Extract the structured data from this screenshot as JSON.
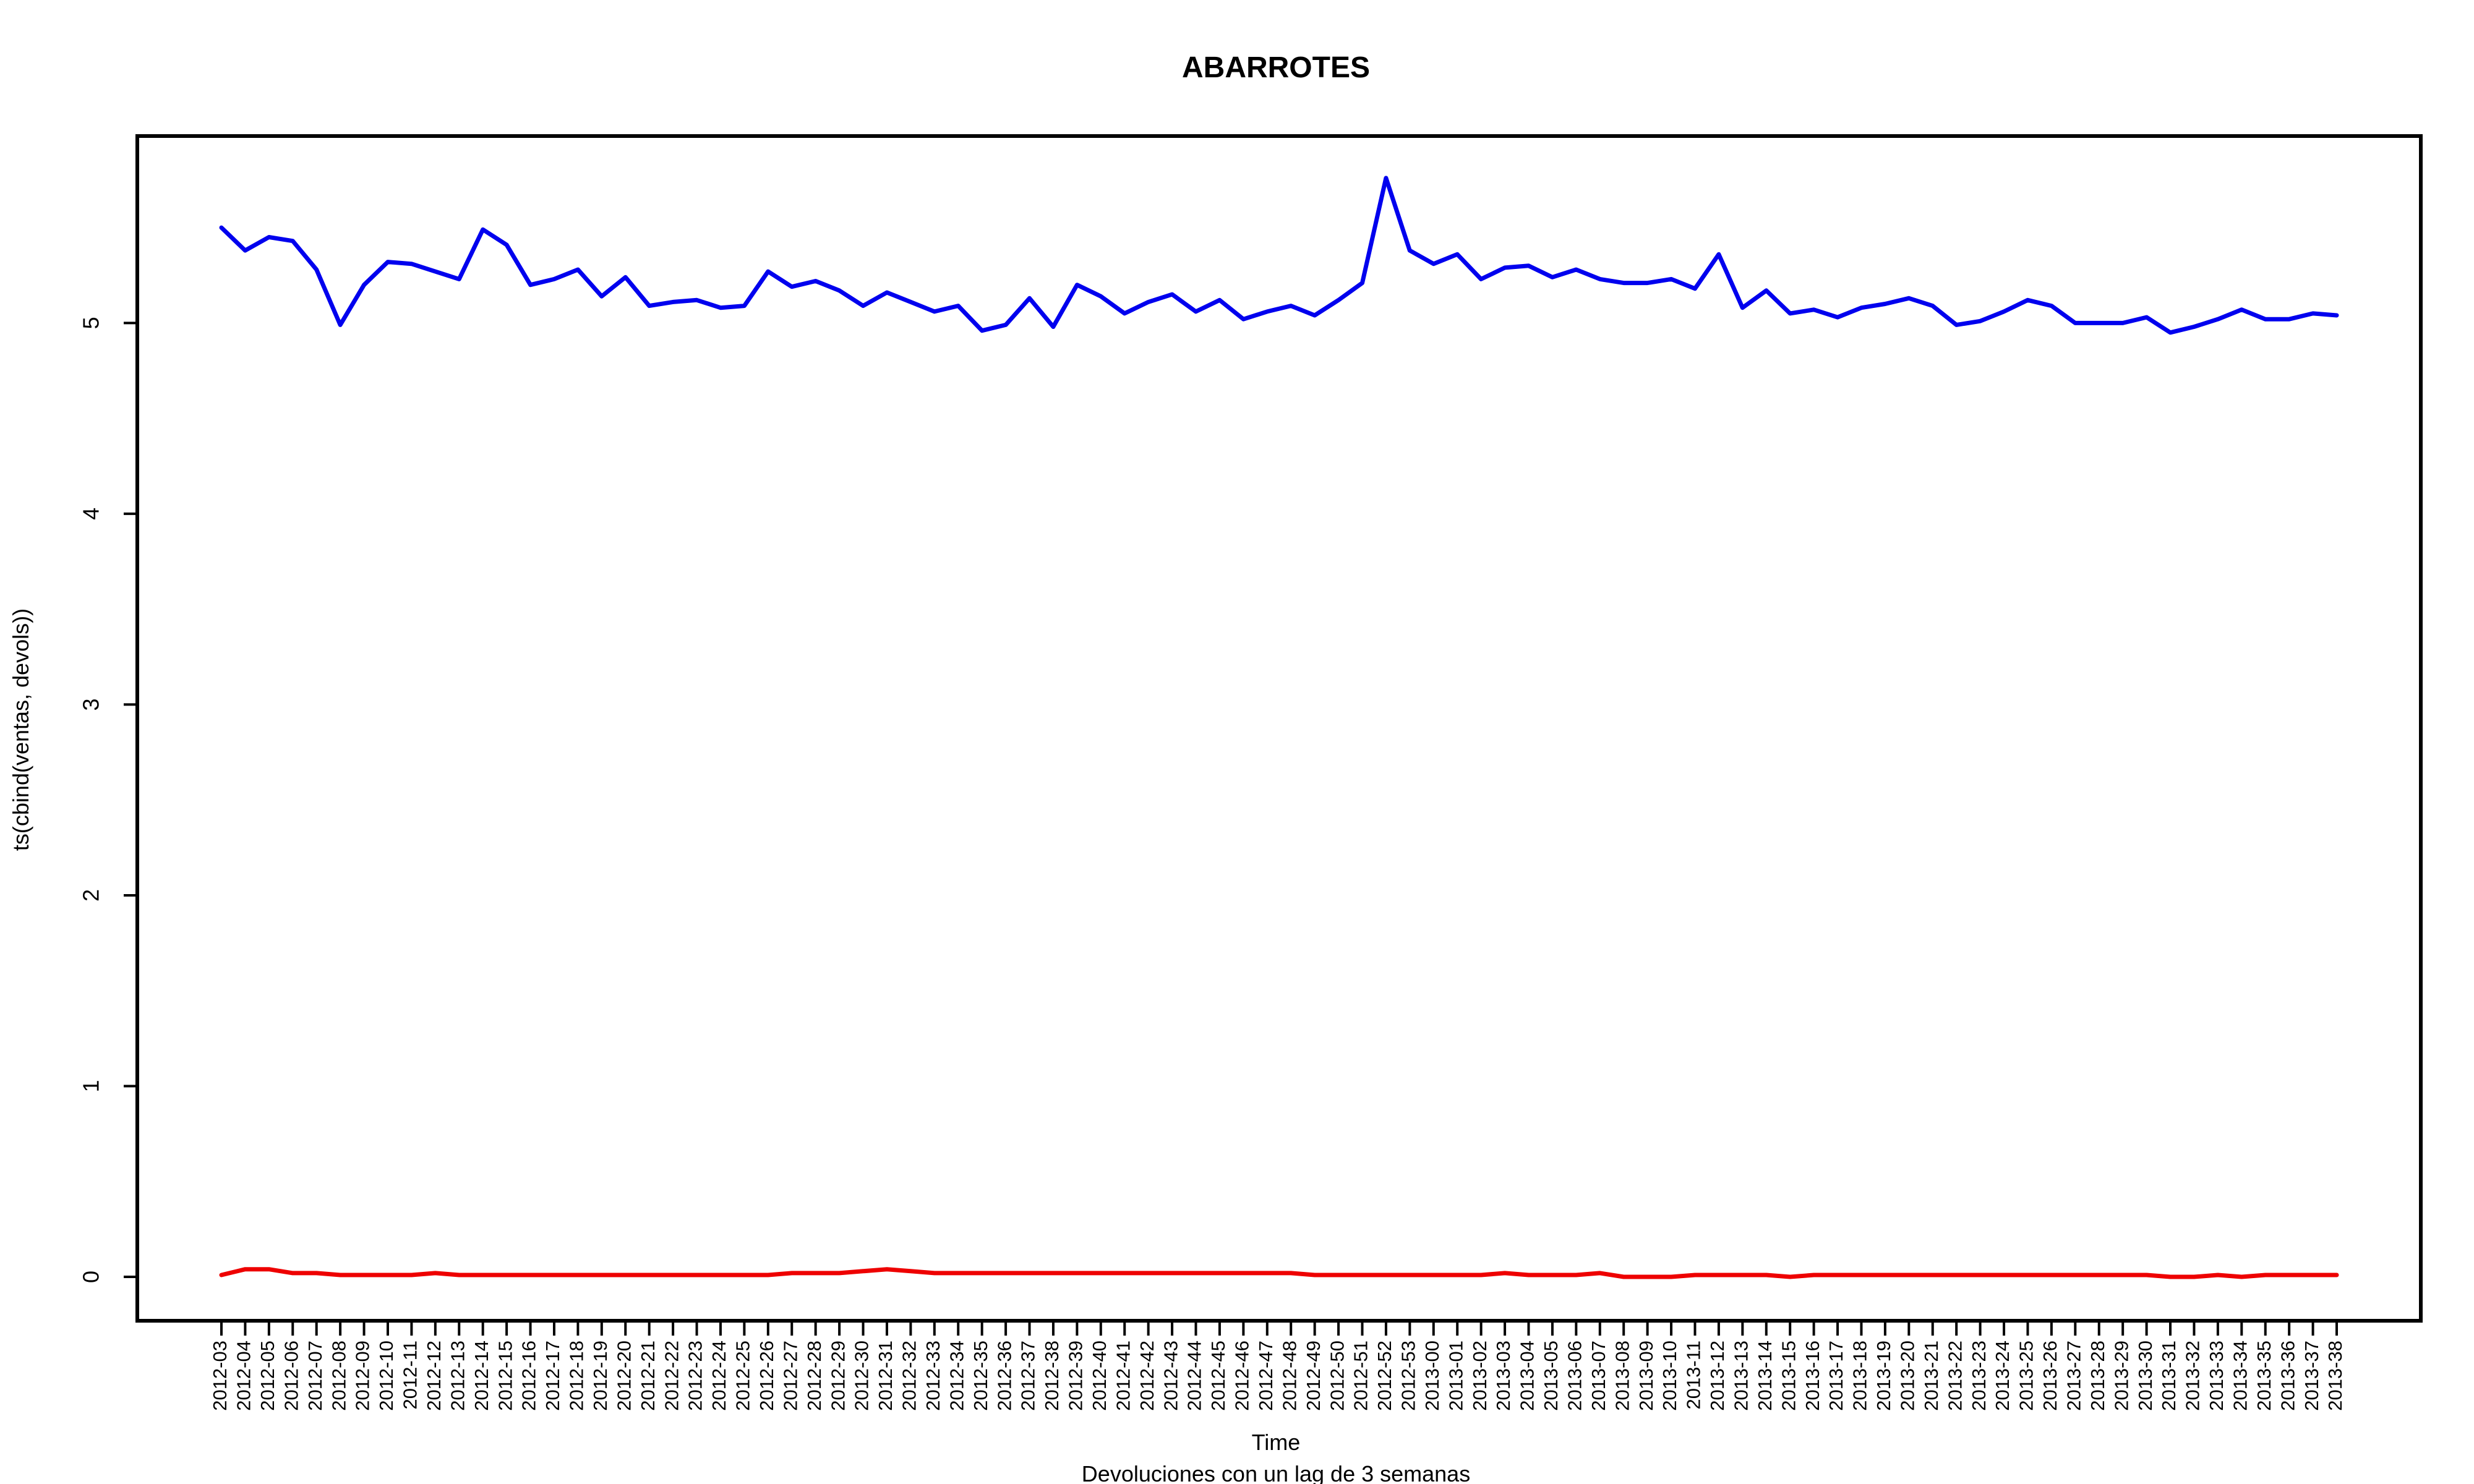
{
  "chart_data": {
    "type": "line",
    "title": "ABARROTES",
    "xlabel": "Time",
    "ylabel": "ts(cbind(ventas, devols))",
    "subtitle": "Devoluciones con un lag de 3 semanas",
    "ylim": [
      -0.23,
      5.98
    ],
    "yticks": [
      0,
      1,
      2,
      3,
      4,
      5
    ],
    "categories": [
      "2012-03",
      "2012-04",
      "2012-05",
      "2012-06",
      "2012-07",
      "2012-08",
      "2012-09",
      "2012-10",
      "2012-11",
      "2012-12",
      "2012-13",
      "2012-14",
      "2012-15",
      "2012-16",
      "2012-17",
      "2012-18",
      "2012-19",
      "2012-20",
      "2012-21",
      "2012-22",
      "2012-23",
      "2012-24",
      "2012-25",
      "2012-26",
      "2012-27",
      "2012-28",
      "2012-29",
      "2012-30",
      "2012-31",
      "2012-32",
      "2012-33",
      "2012-34",
      "2012-35",
      "2012-36",
      "2012-37",
      "2012-38",
      "2012-39",
      "2012-40",
      "2012-41",
      "2012-42",
      "2012-43",
      "2012-44",
      "2012-45",
      "2012-46",
      "2012-47",
      "2012-48",
      "2012-49",
      "2012-50",
      "2012-51",
      "2012-52",
      "2012-53",
      "2013-00",
      "2013-01",
      "2013-02",
      "2013-03",
      "2013-04",
      "2013-05",
      "2013-06",
      "2013-07",
      "2013-08",
      "2013-09",
      "2013-10",
      "2013-11",
      "2013-12",
      "2013-13",
      "2013-14",
      "2013-15",
      "2013-16",
      "2013-17",
      "2013-18",
      "2013-19",
      "2013-20",
      "2013-21",
      "2013-22",
      "2013-23",
      "2013-24",
      "2013-25",
      "2013-26",
      "2013-27",
      "2013-28",
      "2013-29",
      "2013-30",
      "2013-31",
      "2013-32",
      "2013-33",
      "2013-34",
      "2013-35",
      "2013-36",
      "2013-37",
      "2013-38"
    ],
    "grid": false,
    "legend": "none",
    "series": [
      {
        "color": "#0000ee",
        "values": [
          5.5,
          5.38,
          5.45,
          5.43,
          5.28,
          4.99,
          5.2,
          5.32,
          5.31,
          5.27,
          5.23,
          5.49,
          5.41,
          5.2,
          5.23,
          5.28,
          5.14,
          5.24,
          5.09,
          5.11,
          5.12,
          5.08,
          5.09,
          5.27,
          5.19,
          5.22,
          5.17,
          5.09,
          5.16,
          5.11,
          5.06,
          5.09,
          4.96,
          4.99,
          5.13,
          4.98,
          5.2,
          5.14,
          5.05,
          5.11,
          5.15,
          5.06,
          5.12,
          5.02,
          5.06,
          5.09,
          5.04,
          5.12,
          5.21,
          5.76,
          5.38,
          5.31,
          5.36,
          5.23,
          5.29,
          5.3,
          5.24,
          5.28,
          5.23,
          5.21,
          5.21,
          5.23,
          5.18,
          5.36,
          5.08,
          5.17,
          5.05,
          5.07,
          5.03,
          5.08,
          5.1,
          5.13,
          5.09,
          4.99,
          5.01,
          5.06,
          5.12,
          5.09,
          5.0,
          5.0,
          5.0,
          5.03,
          4.95,
          4.98,
          5.02,
          5.07,
          5.02,
          5.02,
          5.05,
          5.04
        ]
      },
      {
        "color": "#ee0000",
        "values": [
          0.01,
          0.04,
          0.04,
          0.02,
          0.02,
          0.01,
          0.01,
          0.01,
          0.01,
          0.02,
          0.01,
          0.01,
          0.01,
          0.01,
          0.01,
          0.01,
          0.01,
          0.01,
          0.01,
          0.01,
          0.01,
          0.01,
          0.01,
          0.01,
          0.02,
          0.02,
          0.02,
          0.03,
          0.04,
          0.03,
          0.02,
          0.02,
          0.02,
          0.02,
          0.02,
          0.02,
          0.02,
          0.02,
          0.02,
          0.02,
          0.02,
          0.02,
          0.02,
          0.02,
          0.02,
          0.02,
          0.01,
          0.01,
          0.01,
          0.01,
          0.01,
          0.01,
          0.01,
          0.01,
          0.02,
          0.01,
          0.01,
          0.01,
          0.02,
          0.0,
          0.0,
          0.0,
          0.01,
          0.01,
          0.01,
          0.01,
          0.0,
          0.01,
          0.01,
          0.01,
          0.01,
          0.01,
          0.01,
          0.01,
          0.01,
          0.01,
          0.01,
          0.01,
          0.01,
          0.01,
          0.01,
          0.01,
          0.0,
          0.0,
          0.01,
          0.0,
          0.01,
          0.01,
          0.01,
          0.01
        ]
      }
    ]
  }
}
